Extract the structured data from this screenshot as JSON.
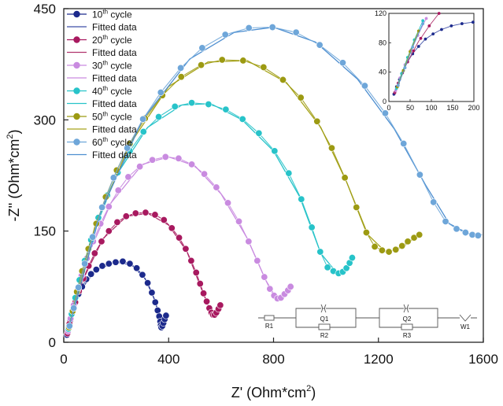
{
  "chart_data": {
    "type": "scatter",
    "title": "",
    "xlabel_main": "Z' (Ohm*cm",
    "xlabel_sup": "2",
    "xlabel_end": ")",
    "ylabel_main": "-Z'' (Ohm*cm",
    "ylabel_sup": "2",
    "ylabel_end": ")",
    "xlim": [
      0,
      1600
    ],
    "ylim": [
      0,
      450
    ],
    "xticks": [
      0,
      400,
      800,
      1200,
      1600
    ],
    "yticks": [
      0,
      150,
      300,
      450
    ],
    "legend_position": "top-left",
    "series": [
      {
        "base": "10",
        "sup": "th",
        "suffix": " cycle",
        "fit_label": "Fitted data",
        "color": "#1c2a8c",
        "fit_color": "#3f4fa8",
        "points": [
          [
            12,
            10
          ],
          [
            18,
            20
          ],
          [
            25,
            30
          ],
          [
            34,
            42
          ],
          [
            44,
            54
          ],
          [
            56,
            65
          ],
          [
            70,
            75
          ],
          [
            86,
            85
          ],
          [
            104,
            92
          ],
          [
            124,
            98
          ],
          [
            147,
            103
          ],
          [
            172,
            106
          ],
          [
            198,
            108
          ],
          [
            225,
            109
          ],
          [
            252,
            106
          ],
          [
            278,
            100
          ],
          [
            300,
            91
          ],
          [
            320,
            80
          ],
          [
            336,
            67
          ],
          [
            349,
            54
          ],
          [
            358,
            43
          ],
          [
            364,
            35
          ],
          [
            368,
            28
          ],
          [
            370,
            23
          ],
          [
            372,
            20
          ],
          [
            376,
            22
          ],
          [
            380,
            26
          ],
          [
            385,
            31
          ],
          [
            390,
            36
          ]
        ],
        "fit": [
          [
            10,
            8
          ],
          [
            60,
            68
          ],
          [
            120,
            97
          ],
          [
            200,
            108
          ],
          [
            260,
            104
          ],
          [
            310,
            86
          ],
          [
            350,
            55
          ],
          [
            368,
            27
          ],
          [
            375,
            20
          ],
          [
            392,
            38
          ]
        ]
      },
      {
        "base": "20",
        "sup": "th",
        "suffix": " cycle",
        "fit_label": "Fitted data",
        "color": "#a8195f",
        "fit_color": "#b0346e",
        "points": [
          [
            14,
            12
          ],
          [
            22,
            25
          ],
          [
            32,
            39
          ],
          [
            44,
            54
          ],
          [
            58,
            69
          ],
          [
            75,
            86
          ],
          [
            95,
            103
          ],
          [
            118,
            120
          ],
          [
            144,
            136
          ],
          [
            172,
            150
          ],
          [
            204,
            162
          ],
          [
            238,
            170
          ],
          [
            274,
            174
          ],
          [
            312,
            175
          ],
          [
            348,
            172
          ],
          [
            382,
            165
          ],
          [
            412,
            154
          ],
          [
            440,
            141
          ],
          [
            465,
            126
          ],
          [
            486,
            110
          ],
          [
            505,
            94
          ],
          [
            520,
            79
          ],
          [
            533,
            66
          ],
          [
            545,
            55
          ],
          [
            555,
            46
          ],
          [
            563,
            40
          ],
          [
            569,
            37
          ],
          [
            575,
            37
          ],
          [
            582,
            40
          ],
          [
            590,
            45
          ],
          [
            597,
            50
          ]
        ],
        "fit": [
          [
            12,
            10
          ],
          [
            70,
            82
          ],
          [
            150,
            140
          ],
          [
            240,
            170
          ],
          [
            320,
            174
          ],
          [
            400,
            158
          ],
          [
            470,
            122
          ],
          [
            525,
            72
          ],
          [
            560,
            42
          ],
          [
            575,
            36
          ],
          [
            600,
            52
          ]
        ]
      },
      {
        "base": "30",
        "sup": "th",
        "suffix": " cycle",
        "fit_label": "Fitted data",
        "color": "#c98be0",
        "fit_color": "#c98be0",
        "points": [
          [
            16,
            15
          ],
          [
            26,
            32
          ],
          [
            38,
            50
          ],
          [
            52,
            70
          ],
          [
            68,
            90
          ],
          [
            88,
            113
          ],
          [
            112,
            136
          ],
          [
            140,
            160
          ],
          [
            172,
            183
          ],
          [
            208,
            205
          ],
          [
            246,
            223
          ],
          [
            290,
            237
          ],
          [
            338,
            246
          ],
          [
            388,
            250
          ],
          [
            438,
            248
          ],
          [
            488,
            240
          ],
          [
            536,
            227
          ],
          [
            582,
            209
          ],
          [
            626,
            188
          ],
          [
            668,
            163
          ],
          [
            705,
            136
          ],
          [
            738,
            110
          ],
          [
            765,
            88
          ],
          [
            786,
            72
          ],
          [
            802,
            63
          ],
          [
            815,
            59
          ],
          [
            828,
            60
          ],
          [
            842,
            65
          ],
          [
            855,
            70
          ],
          [
            865,
            75
          ]
        ],
        "fit": [
          [
            14,
            12
          ],
          [
            90,
            115
          ],
          [
            180,
            188
          ],
          [
            300,
            240
          ],
          [
            400,
            250
          ],
          [
            500,
            238
          ],
          [
            600,
            200
          ],
          [
            700,
            140
          ],
          [
            770,
            84
          ],
          [
            810,
            60
          ],
          [
            840,
            63
          ],
          [
            870,
            76
          ]
        ]
      },
      {
        "base": "40",
        "sup": "th",
        "suffix": " cycle",
        "fit_label": "Fitted data",
        "color": "#27c3c9",
        "fit_color": "#27c3c9",
        "points": [
          [
            18,
            18
          ],
          [
            30,
            38
          ],
          [
            44,
            60
          ],
          [
            60,
            84
          ],
          [
            80,
            110
          ],
          [
            104,
            138
          ],
          [
            132,
            168
          ],
          [
            166,
            198
          ],
          [
            206,
            229
          ],
          [
            252,
            258
          ],
          [
            304,
            284
          ],
          [
            362,
            304
          ],
          [
            424,
            318
          ],
          [
            488,
            323
          ],
          [
            552,
            321
          ],
          [
            618,
            314
          ],
          [
            682,
            301
          ],
          [
            744,
            282
          ],
          [
            804,
            258
          ],
          [
            858,
            228
          ],
          [
            906,
            193
          ],
          [
            946,
            155
          ],
          [
            978,
            122
          ],
          [
            1006,
            101
          ],
          [
            1028,
            96
          ],
          [
            1048,
            93
          ],
          [
            1064,
            95
          ],
          [
            1078,
            100
          ],
          [
            1090,
            107
          ],
          [
            1100,
            114
          ]
        ],
        "fit": [
          [
            16,
            15
          ],
          [
            100,
            135
          ],
          [
            200,
            225
          ],
          [
            320,
            290
          ],
          [
            450,
            320
          ],
          [
            560,
            322
          ],
          [
            680,
            300
          ],
          [
            800,
            258
          ],
          [
            900,
            196
          ],
          [
            980,
            120
          ],
          [
            1040,
            94
          ],
          [
            1075,
            99
          ],
          [
            1105,
            116
          ]
        ]
      },
      {
        "base": "50",
        "sup": "th",
        "suffix": " cycle",
        "fit_label": "Fitted data",
        "color": "#9c9a12",
        "fit_color": "#a8a51c",
        "points": [
          [
            20,
            20
          ],
          [
            34,
            42
          ],
          [
            50,
            68
          ],
          [
            70,
            96
          ],
          [
            94,
            126
          ],
          [
            124,
            160
          ],
          [
            160,
            196
          ],
          [
            202,
            232
          ],
          [
            252,
            268
          ],
          [
            310,
            302
          ],
          [
            376,
            333
          ],
          [
            448,
            358
          ],
          [
            524,
            374
          ],
          [
            604,
            381
          ],
          [
            684,
            380
          ],
          [
            762,
            371
          ],
          [
            836,
            354
          ],
          [
            904,
            330
          ],
          [
            966,
            298
          ],
          [
            1022,
            262
          ],
          [
            1072,
            222
          ],
          [
            1116,
            182
          ],
          [
            1154,
            148
          ],
          [
            1186,
            129
          ],
          [
            1214,
            124
          ],
          [
            1240,
            122
          ],
          [
            1266,
            125
          ],
          [
            1290,
            130
          ],
          [
            1312,
            136
          ],
          [
            1336,
            141
          ],
          [
            1356,
            145
          ]
        ],
        "fit": [
          [
            18,
            18
          ],
          [
            120,
            158
          ],
          [
            250,
            266
          ],
          [
            400,
            345
          ],
          [
            550,
            378
          ],
          [
            700,
            380
          ],
          [
            850,
            350
          ],
          [
            980,
            290
          ],
          [
            1080,
            215
          ],
          [
            1160,
            145
          ],
          [
            1230,
            121
          ],
          [
            1290,
            128
          ],
          [
            1360,
            146
          ]
        ]
      },
      {
        "base": "60",
        "sup": "th",
        "suffix": " cycle",
        "fit_label": "Fitted data",
        "color": "#6ea6d9",
        "fit_color": "#4d8ed0",
        "points": [
          [
            22,
            22
          ],
          [
            38,
            46
          ],
          [
            56,
            74
          ],
          [
            80,
            106
          ],
          [
            110,
            142
          ],
          [
            146,
            182
          ],
          [
            190,
            222
          ],
          [
            242,
            262
          ],
          [
            302,
            301
          ],
          [
            370,
            337
          ],
          [
            446,
            370
          ],
          [
            528,
            397
          ],
          [
            616,
            415
          ],
          [
            706,
            424
          ],
          [
            796,
            425
          ],
          [
            886,
            418
          ],
          [
            976,
            401
          ],
          [
            1064,
            377
          ],
          [
            1148,
            346
          ],
          [
            1226,
            309
          ],
          [
            1296,
            268
          ],
          [
            1358,
            226
          ],
          [
            1410,
            189
          ],
          [
            1456,
            163
          ],
          [
            1498,
            153
          ],
          [
            1532,
            148
          ],
          [
            1558,
            145
          ],
          [
            1580,
            144
          ]
        ],
        "fit": [
          [
            20,
            20
          ],
          [
            140,
            175
          ],
          [
            300,
            300
          ],
          [
            480,
            382
          ],
          [
            650,
            418
          ],
          [
            800,
            425
          ],
          [
            960,
            405
          ],
          [
            1120,
            355
          ],
          [
            1260,
            288
          ],
          [
            1380,
            212
          ],
          [
            1470,
            160
          ],
          [
            1540,
            147
          ],
          [
            1595,
            145
          ]
        ]
      }
    ],
    "inset": {
      "xlim": [
        0,
        200
      ],
      "ylim": [
        0,
        120
      ],
      "xticks": [
        0,
        50,
        100,
        150,
        200
      ],
      "yticks": [
        0,
        40,
        80,
        120
      ]
    },
    "circuit": {
      "elements": [
        "R1",
        "Q1",
        "R2",
        "Q2",
        "R3",
        "W1"
      ]
    }
  }
}
